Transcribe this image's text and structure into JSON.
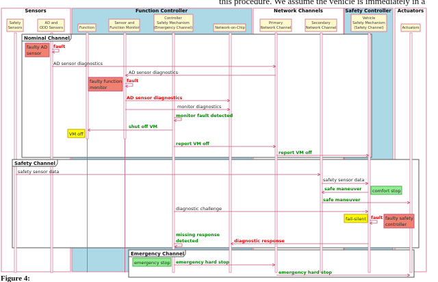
{
  "top_text": "this procedure. We assume the vehicle is immediately in a",
  "caption": "Figure 4:",
  "groups": {
    "sensors": "Sensors",
    "function_controller": "Function Controller",
    "network_channels": "Network Channels",
    "safety_controller": "Safety Controller",
    "actuators": "Actuators"
  },
  "participants": {
    "safety_sensors": [
      "Safety",
      "Sensors"
    ],
    "ad_odd": [
      "AD and",
      "ODD Sensors"
    ],
    "function": [
      "Function"
    ],
    "monitor": [
      "Sensor and",
      "Function Monitor"
    ],
    "controller_sm": [
      "Controller",
      "Safety Mechanism",
      "(Emergency Channel)"
    ],
    "noc": [
      "Network-on-Chip"
    ],
    "primary": [
      "Primary",
      "Network Channel"
    ],
    "secondary": [
      "Secondary",
      "Network Channel"
    ],
    "vehicle_sm": [
      "Vehicle",
      "Safety Mechanism",
      "(Safety Channel)"
    ],
    "actuators": [
      "Actuators"
    ]
  },
  "frames": {
    "nominal": "Nominal Channel",
    "safety": "Safety Channel",
    "emergency": "Emergency Channel"
  },
  "messages": {
    "fault": "fault",
    "ad_diag": "AD sensor diagnostics",
    "monitor_diag": "monitor diagnostics",
    "monitor_fault": "monitor fault detected",
    "shut_off": "shut off VM",
    "report_vm_off": "report VM off",
    "safety_sensor_data": "safety sensor data",
    "safe_maneuver": "safe maneuver",
    "diag_challenge": "diagnostic challenge",
    "missing_response": [
      "missing response",
      "detected"
    ],
    "diag_response": "diagnostic response",
    "emergency_hard_stop": "emergency hard stop"
  },
  "notes": {
    "faulty_ad": [
      "faulty AD",
      "sensor"
    ],
    "faulty_monitor": [
      "faulty function",
      "monitor"
    ],
    "vm_off": "VM off",
    "comfort_stop": "comfort stop",
    "fail_silent": "fail-silent",
    "faulty_safety": [
      "faulty safety",
      "controller"
    ],
    "emergency_stop": "emergency stop"
  },
  "colors": {
    "group_blue": "#add8e6",
    "participant_fill": "#fffacd",
    "lifeline": "#c9507a",
    "note_red": "#f08070",
    "note_yellow": "#ffff00",
    "note_green": "#90ee90",
    "red_text": "#ee0000",
    "green_text": "#008800"
  }
}
